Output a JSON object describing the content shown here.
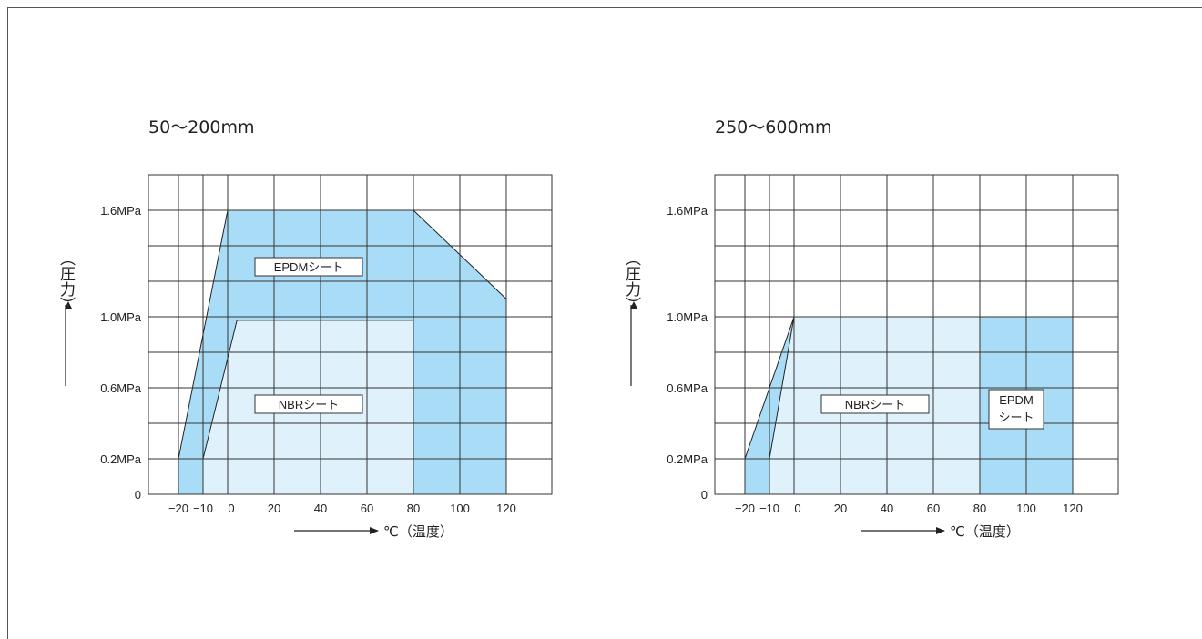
{
  "chart_data": [
    {
      "type": "area",
      "title": "50〜200mm",
      "xlabel": "℃（温度）",
      "ylabel": "（圧力）",
      "x_ticks": [
        "−20",
        "−10",
        "0",
        "20",
        "40",
        "60",
        "80",
        "100",
        "120"
      ],
      "y_ticks": [
        "0",
        "0.2MPa",
        "0.6MPa",
        "1.0MPa",
        "1.6MPa"
      ],
      "xlim": [
        -20,
        140
      ],
      "ylim": [
        0,
        1.8
      ],
      "grid": true,
      "regions": [
        {
          "name": "EPDMシート",
          "color": "#a9dcf6",
          "points": [
            [
              -20,
              0
            ],
            [
              -20,
              0.2
            ],
            [
              0,
              1.6
            ],
            [
              80,
              1.6
            ],
            [
              120,
              1.1
            ],
            [
              120,
              0
            ]
          ]
        },
        {
          "name": "NBRシート",
          "color": "#dff2fb",
          "points": [
            [
              -10,
              0
            ],
            [
              -10,
              0.2
            ],
            [
              4,
              0.98
            ],
            [
              80,
              0.98
            ],
            [
              80,
              0
            ]
          ]
        }
      ]
    },
    {
      "type": "area",
      "title": "250〜600mm",
      "xlabel": "℃（温度）",
      "ylabel": "（圧力）",
      "x_ticks": [
        "−20",
        "−10",
        "0",
        "20",
        "40",
        "60",
        "80",
        "100",
        "120"
      ],
      "y_ticks": [
        "0",
        "0.2MPa",
        "0.6MPa",
        "1.0MPa",
        "1.6MPa"
      ],
      "xlim": [
        -20,
        140
      ],
      "ylim": [
        0,
        1.8
      ],
      "grid": true,
      "regions": [
        {
          "name": "EPDMシート-left",
          "color": "#a9dcf6",
          "points": [
            [
              -20,
              0
            ],
            [
              -20,
              0.2
            ],
            [
              0,
              1.0
            ],
            [
              -10,
              0
            ]
          ]
        },
        {
          "name": "NBRシート",
          "color": "#dff2fb",
          "points": [
            [
              -10,
              0
            ],
            [
              -10,
              0.2
            ],
            [
              0,
              1.0
            ],
            [
              80,
              1.0
            ],
            [
              80,
              0
            ]
          ]
        },
        {
          "name": "EPDM シート",
          "color": "#a9dcf6",
          "points": [
            [
              80,
              0
            ],
            [
              80,
              1.0
            ],
            [
              120,
              1.0
            ],
            [
              120,
              0
            ]
          ]
        }
      ]
    }
  ],
  "labels": {
    "chart1": {
      "epdm": "EPDMシート",
      "nbr": "NBRシート"
    },
    "chart2": {
      "nbr": "NBRシート",
      "epdm_line1": "EPDM",
      "epdm_line2": "シート"
    }
  }
}
